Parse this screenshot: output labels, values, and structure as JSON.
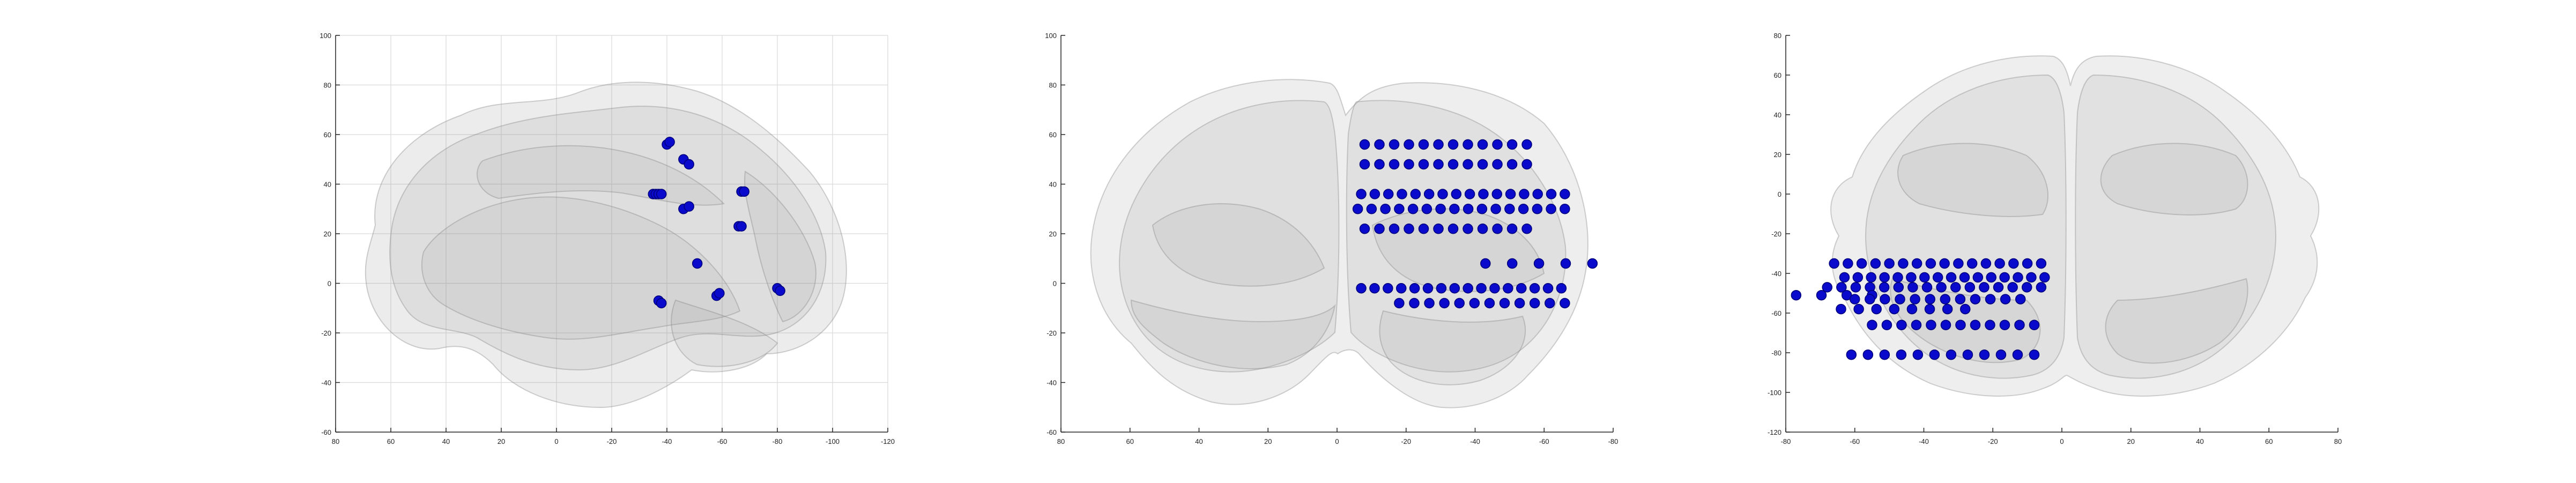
{
  "chart_data": [
    {
      "type": "scatter",
      "view": "sagittal",
      "title": "",
      "xlabel": "",
      "ylabel": "",
      "xlim": [
        -120,
        80
      ],
      "ylim": [
        -60,
        100
      ],
      "x_reversed": true,
      "grid": true,
      "xticks": [
        "80",
        "60",
        "40",
        "20",
        "0",
        "-20",
        "-40",
        "-60",
        "-80",
        "-100",
        "-120"
      ],
      "yticks": [
        "-60",
        "-40",
        "-20",
        "0",
        "20",
        "40",
        "60",
        "80",
        "100"
      ],
      "marker_color": "#0a0acc",
      "series": [
        {
          "points": [
            [
              -40,
              56
            ],
            [
              -41,
              57
            ],
            [
              -46,
              50
            ],
            [
              -48,
              48
            ],
            [
              -35,
              36
            ],
            [
              -36,
              36
            ],
            [
              -37,
              36
            ],
            [
              -38,
              36
            ],
            [
              -46,
              30
            ],
            [
              -48,
              31
            ],
            [
              -67,
              37
            ],
            [
              -68,
              37
            ],
            [
              -66,
              23
            ],
            [
              -67,
              23
            ],
            [
              -51,
              8
            ],
            [
              -37,
              -7
            ],
            [
              -38,
              -8
            ],
            [
              -58,
              -5
            ],
            [
              -59,
              -4
            ],
            [
              -80,
              -2
            ],
            [
              -81,
              -3
            ]
          ]
        }
      ],
      "brain_outline": {
        "color": "#8c8c8c"
      }
    },
    {
      "type": "scatter",
      "view": "coronal",
      "title": "",
      "xlabel": "",
      "ylabel": "",
      "xlim": [
        -80,
        80
      ],
      "ylim": [
        -60,
        100
      ],
      "x_reversed": true,
      "grid": false,
      "xticks": [
        "80",
        "60",
        "40",
        "20",
        "0",
        "-20",
        "-40",
        "-60",
        "-80"
      ],
      "yticks": [
        "-60",
        "-40",
        "-20",
        "0",
        "20",
        "40",
        "60",
        "80",
        "100"
      ],
      "marker_color": "#0a0acc",
      "series": [
        {
          "rows": [
            {
              "y": 56,
              "x_from": -8,
              "x_to": -55,
              "count": 12
            },
            {
              "y": 48,
              "x_from": -8,
              "x_to": -55,
              "count": 12
            },
            {
              "y": 36,
              "x_from": -7,
              "x_to": -66,
              "count": 16
            },
            {
              "y": 30,
              "x_from": -6,
              "x_to": -66,
              "count": 16
            },
            {
              "y": 22,
              "x_from": -8,
              "x_to": -55,
              "count": 12
            },
            {
              "y": 8,
              "x_from": -43,
              "x_to": -74,
              "count": 5
            },
            {
              "y": -2,
              "x_from": -7,
              "x_to": -65,
              "count": 16
            },
            {
              "y": -8,
              "x_from": -18,
              "x_to": -66,
              "count": 12
            }
          ]
        }
      ],
      "brain_outline": {
        "color": "#8c8c8c"
      }
    },
    {
      "type": "scatter",
      "view": "axial",
      "title": "",
      "xlabel": "",
      "ylabel": "",
      "xlim": [
        -80,
        80
      ],
      "ylim": [
        -120,
        80
      ],
      "x_reversed": false,
      "grid": false,
      "xticks": [
        "-80",
        "-60",
        "-40",
        "-20",
        "0",
        "20",
        "40",
        "60",
        "80"
      ],
      "yticks": [
        "-120",
        "-100",
        "-80",
        "-60",
        "-40",
        "-20",
        "0",
        "20",
        "40",
        "60",
        "80"
      ],
      "marker_color": "#0a0acc",
      "series": [
        {
          "rows": [
            {
              "y": -35,
              "x_from": -66,
              "x_to": -6,
              "count": 16
            },
            {
              "y": -42,
              "x_from": -63,
              "x_to": -5,
              "count": 16
            },
            {
              "y": -47,
              "x_from": -68,
              "x_to": -6,
              "count": 16
            },
            {
              "y": -51,
              "x_from": -77,
              "x_to": -55,
              "count": 4
            },
            {
              "y": -53,
              "x_from": -60,
              "x_to": -12,
              "count": 12
            },
            {
              "y": -58,
              "x_from": -64,
              "x_to": -28,
              "count": 8
            },
            {
              "y": -66,
              "x_from": -55,
              "x_to": -8,
              "count": 12
            },
            {
              "y": -81,
              "x_from": -61,
              "x_to": -8,
              "count": 12
            }
          ]
        }
      ],
      "brain_outline": {
        "color": "#8c8c8c"
      }
    }
  ]
}
